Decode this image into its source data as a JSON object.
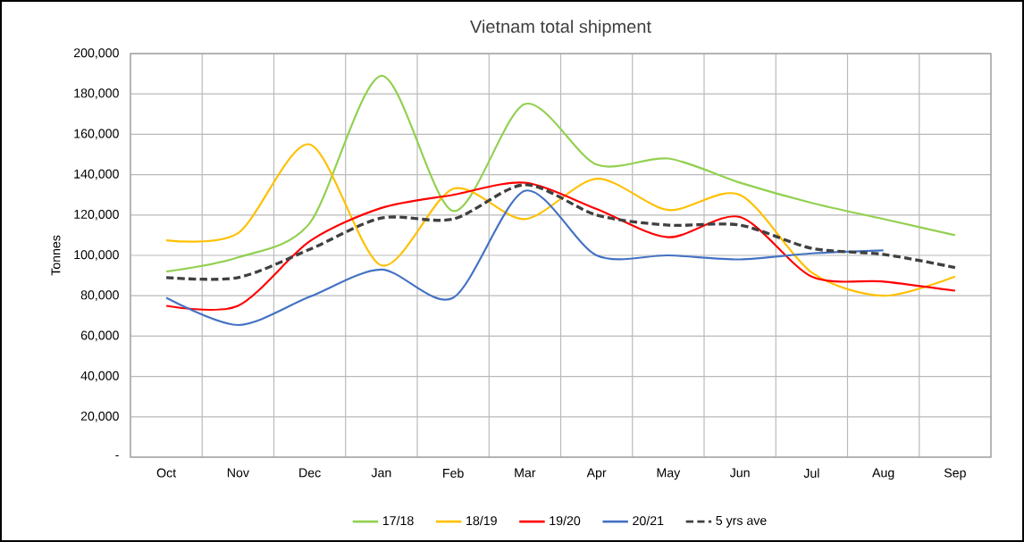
{
  "chart_data": {
    "type": "line",
    "title": "Vietnam total shipment",
    "ylabel": "Tonnes",
    "categories": [
      "Oct",
      "Nov",
      "Dec",
      "Jan",
      "Feb",
      "Mar",
      "Apr",
      "May",
      "Jun",
      "Jul",
      "Aug",
      "Sep"
    ],
    "ylim": [
      0,
      200000
    ],
    "yticks": [
      {
        "value": 0,
        "label": "-"
      },
      {
        "value": 20000,
        "label": "20,000"
      },
      {
        "value": 40000,
        "label": "40,000"
      },
      {
        "value": 60000,
        "label": "60,000"
      },
      {
        "value": 80000,
        "label": "80,000"
      },
      {
        "value": 100000,
        "label": "100,000"
      },
      {
        "value": 120000,
        "label": "120,000"
      },
      {
        "value": 140000,
        "label": "140,000"
      },
      {
        "value": 160000,
        "label": "160,000"
      },
      {
        "value": 180000,
        "label": "180,000"
      },
      {
        "value": 200000,
        "label": "200,000"
      }
    ],
    "series": [
      {
        "name": "17/18",
        "color": "#92d050",
        "values": [
          92000,
          99000,
          116000,
          189000,
          122000,
          175000,
          145000,
          148000,
          136000,
          126000,
          118000,
          110000
        ]
      },
      {
        "name": "18/19",
        "color": "#ffc000",
        "values": [
          107500,
          111000,
          155000,
          95000,
          133000,
          118000,
          138000,
          122500,
          130000,
          91500,
          80000,
          89500
        ]
      },
      {
        "name": "19/20",
        "color": "#ff0000",
        "values": [
          75000,
          75000,
          107000,
          123500,
          130000,
          136000,
          123000,
          109000,
          119000,
          89500,
          87000,
          82500
        ]
      },
      {
        "name": "20/21",
        "color": "#4472c4",
        "values": [
          79000,
          65500,
          79500,
          93000,
          79000,
          132000,
          100000,
          100000,
          98000,
          101000,
          102500,
          null
        ]
      },
      {
        "name": "5 yrs ave",
        "color": "#404040",
        "line_style": "dashed",
        "values": [
          89000,
          89000,
          103000,
          118500,
          118000,
          135000,
          120000,
          115000,
          115000,
          103500,
          100500,
          94000
        ]
      }
    ],
    "grid": true,
    "legend": "bottom",
    "marker": "none",
    "line_style": "solid"
  }
}
